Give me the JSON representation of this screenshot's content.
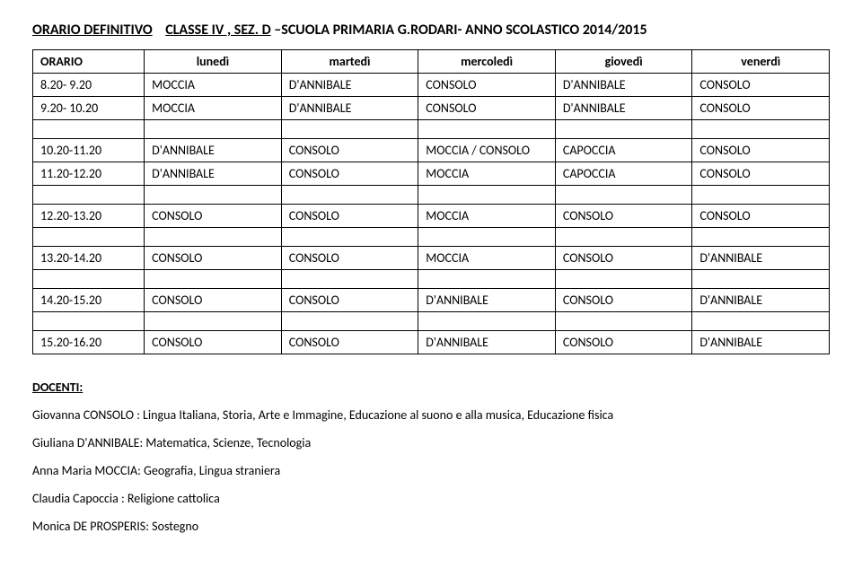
{
  "title": {
    "part1": "ORARIO DEFINITIVO",
    "part2": "CLASSE IV , SEZ. D",
    "part3": " –SCUOLA PRIMARIA G.RODARI- ANNO SCOLASTICO 2014/2015"
  },
  "table": {
    "headers": [
      "ORARIO",
      "lunedì",
      "martedì",
      "mercoledì",
      "giovedì",
      "venerdì"
    ],
    "rows": [
      [
        "8.20- 9.20",
        "MOCCIA",
        "D'ANNIBALE",
        "CONSOLO",
        "D'ANNIBALE",
        "CONSOLO"
      ],
      [
        "9.20- 10.20",
        "MOCCIA",
        "D'ANNIBALE",
        "CONSOLO",
        "D'ANNIBALE",
        "CONSOLO"
      ],
      [
        "10.20-11.20",
        "D'ANNIBALE",
        "CONSOLO",
        "MOCCIA / CONSOLO",
        "CAPOCCIA",
        "CONSOLO"
      ],
      [
        "11.20-12.20",
        "D'ANNIBALE",
        "CONSOLO",
        "MOCCIA",
        "CAPOCCIA",
        "CONSOLO"
      ],
      [
        "12.20-13.20",
        "CONSOLO",
        "CONSOLO",
        "MOCCIA",
        "CONSOLO",
        "CONSOLO"
      ],
      [
        "13.20-14.20",
        "CONSOLO",
        "CONSOLO",
        "MOCCIA",
        "CONSOLO",
        "D'ANNIBALE"
      ],
      [
        "14.20-15.20",
        "CONSOLO",
        "CONSOLO",
        "D'ANNIBALE",
        "CONSOLO",
        "D'ANNIBALE"
      ],
      [
        "15.20-16.20",
        "CONSOLO",
        "CONSOLO",
        "D'ANNIBALE",
        "CONSOLO",
        "D'ANNIBALE"
      ]
    ],
    "spacer_after": [
      1,
      3,
      4,
      5,
      6
    ]
  },
  "docenti": {
    "heading": "DOCENTI:",
    "lines": [
      "Giovanna CONSOLO : Lingua Italiana, Storia, Arte e Immagine, Educazione al suono e alla musica, Educazione fisica",
      "Giuliana D'ANNIBALE: Matematica, Scienze, Tecnologia",
      "Anna Maria MOCCIA: Geografia, Lingua straniera",
      "Claudia Capoccia : Religione cattolica",
      "Monica DE PROSPERIS: Sostegno"
    ]
  },
  "style": {
    "col_widths": [
      "14%",
      "17.2%",
      "17.2%",
      "17.2%",
      "17.2%",
      "17.2%"
    ]
  }
}
